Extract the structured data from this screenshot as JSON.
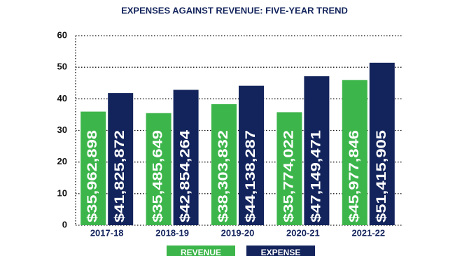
{
  "chart_data": {
    "type": "bar",
    "title": "EXPENSES AGAINST REVENUE: FIVE-YEAR TREND",
    "categories": [
      "2017-18",
      "2018-19",
      "2019-20",
      "2020-21",
      "2021-22"
    ],
    "series": [
      {
        "name": "REVENUE",
        "color": "#3cb54a",
        "values": [
          35.962898,
          35.485649,
          38.303832,
          35.774022,
          45.977846
        ],
        "value_labels": [
          "$35,962,898",
          "$35,485,649",
          "$38,303,832",
          "$35,774,022",
          "$45,977,846"
        ]
      },
      {
        "name": "EXPENSE",
        "color": "#13245c",
        "values": [
          41.825872,
          42.854264,
          44.138287,
          47.149471,
          51.415905
        ],
        "value_labels": [
          "$41,825,872",
          "$42,854,264",
          "$44,138,287",
          "$47,149,471",
          "$51,415,905"
        ]
      }
    ],
    "ylim": [
      0,
      60
    ],
    "yticks": [
      0,
      10,
      20,
      30,
      40,
      50,
      60
    ],
    "grid": true
  }
}
